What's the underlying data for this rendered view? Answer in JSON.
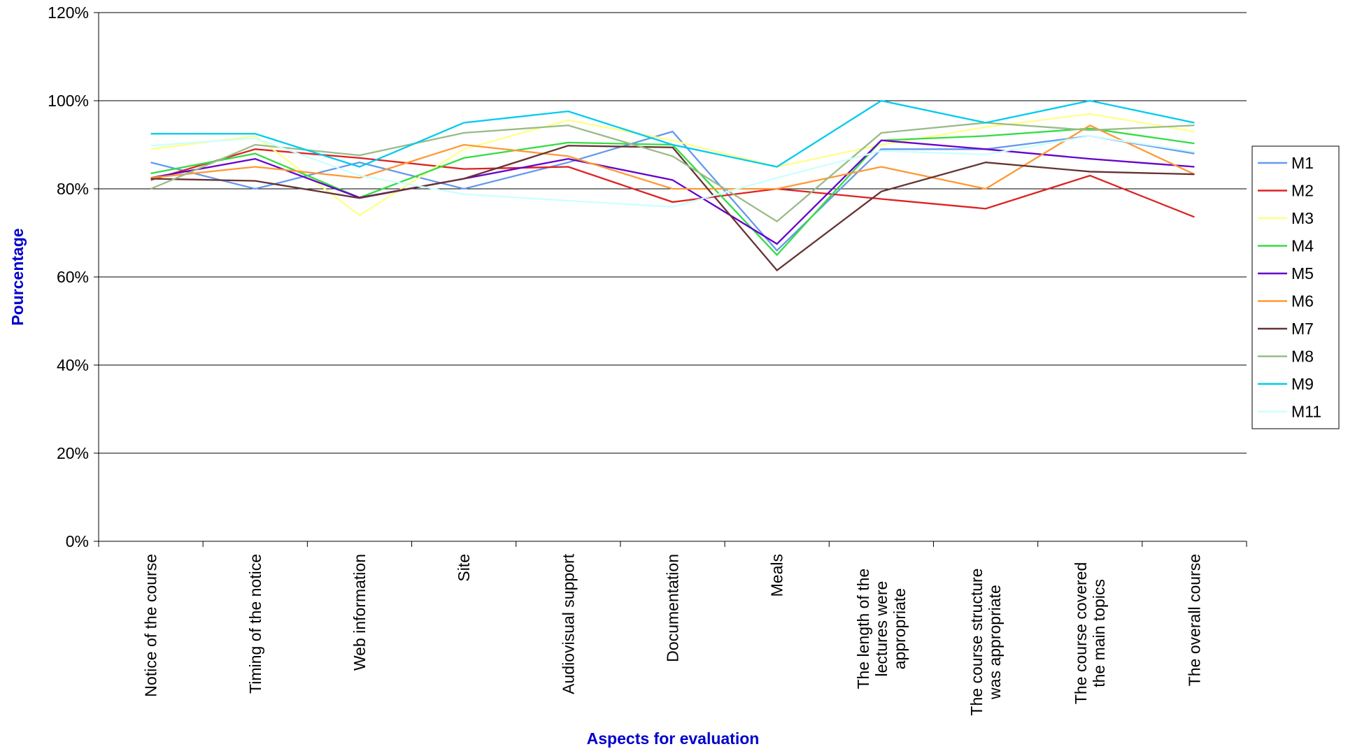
{
  "chart_data": {
    "type": "line",
    "x_label": "Aspects for evaluation",
    "y_label": "Pourcentage",
    "categories": [
      "Notice of the course",
      "Timing of the notice",
      "Web information",
      "Site",
      "Audiovisual support",
      "Documentation",
      "Meals",
      "The length of the\nlectures were\nappropriate",
      "The course structure\nwas appropriate",
      "The course covered\nthe main topics",
      "The overall course"
    ],
    "ylim": [
      0,
      120
    ],
    "yticks": [
      {
        "value": 0,
        "label": "0%"
      },
      {
        "value": 20,
        "label": "20%"
      },
      {
        "value": 40,
        "label": "40%"
      },
      {
        "value": 60,
        "label": "60%"
      },
      {
        "value": 80,
        "label": "80%"
      },
      {
        "value": 100,
        "label": "100%"
      },
      {
        "value": 120,
        "label": "120%"
      }
    ],
    "grid": true,
    "legend": "right",
    "series": [
      {
        "name": "M1",
        "color": "#6699ee",
        "values": [
          86,
          80,
          86,
          80,
          86,
          93,
          66,
          89,
          89,
          92,
          88
        ]
      },
      {
        "name": "M2",
        "color": "#dd2222",
        "values": [
          82,
          89,
          87,
          84.5,
          85,
          77,
          80,
          77.7,
          75.5,
          83,
          73.6
        ]
      },
      {
        "name": "M3",
        "color": "#ffff88",
        "values": [
          89,
          92,
          74,
          89,
          95.6,
          91,
          85,
          90,
          94,
          97,
          93
        ]
      },
      {
        "name": "M4",
        "color": "#33dd44",
        "values": [
          83.5,
          88,
          78,
          87,
          90.5,
          90,
          65,
          91,
          92,
          93.7,
          90.3
        ]
      },
      {
        "name": "M5",
        "color": "#6600cc",
        "values": [
          82.5,
          86.8,
          78,
          82.3,
          86.8,
          82,
          67.5,
          91,
          89,
          86.8,
          85
        ]
      },
      {
        "name": "M6",
        "color": "#ff9933",
        "values": [
          82.5,
          85,
          82.5,
          90,
          87.4,
          80,
          80,
          85,
          80,
          94.4,
          83.3
        ]
      },
      {
        "name": "M7",
        "color": "#663333",
        "values": [
          82.3,
          81.8,
          77.9,
          82.3,
          89.8,
          89.4,
          61.5,
          79.4,
          86,
          83.9,
          83.3
        ]
      },
      {
        "name": "M8",
        "color": "#99bb88",
        "values": [
          80,
          90,
          87.6,
          92.7,
          94.4,
          87.4,
          72.6,
          92.7,
          95,
          93.3,
          94.4
        ]
      },
      {
        "name": "M9",
        "color": "#00ccee",
        "values": [
          92.5,
          92.5,
          85,
          95,
          97.6,
          90,
          85,
          100,
          95,
          100,
          95
        ]
      },
      {
        "name": "M11",
        "color": "#ccffff",
        "values": [
          89.8,
          91.5,
          83,
          78.8,
          77.3,
          75.9,
          82.5,
          88.6,
          87.8,
          92,
          88.4
        ]
      }
    ]
  }
}
